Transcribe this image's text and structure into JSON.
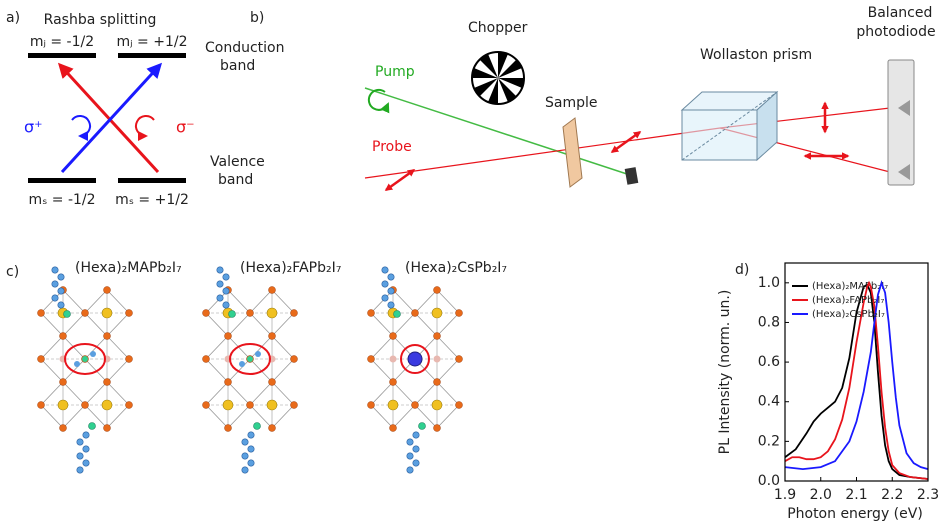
{
  "panel_a": {
    "label": "a)",
    "title": "Rashba splitting",
    "levels": {
      "top_left": "mⱼ = -1/2",
      "top_right": "mⱼ = +1/2",
      "bottom_left": "mₛ = -1/2",
      "bottom_right": "mₛ = +1/2"
    },
    "conduction": [
      "Conduction",
      "band"
    ],
    "valence": [
      "Valence",
      "band"
    ],
    "sigma_plus": "σ⁺",
    "sigma_minus": "σ⁻"
  },
  "panel_b": {
    "label": "b)",
    "pump": "Pump",
    "chopper": "Chopper",
    "sample": "Sample",
    "probe": "Probe",
    "prism": "Wollaston prism",
    "photodiode": [
      "Balanced",
      "photodiode"
    ]
  },
  "panel_c": {
    "label": "c)",
    "compounds": [
      "(Hexa)₂MAPb₂I₇",
      "(Hexa)₂FAPb₂I₇",
      "(Hexa)₂CsPb₂I₇"
    ]
  },
  "chart_data": {
    "type": "line",
    "panel_label": "d)",
    "xlabel": "Photon energy (eV)",
    "ylabel": "PL Intensity (norm. un.)",
    "xlim": [
      1.9,
      2.3
    ],
    "ylim": [
      0,
      1.1
    ],
    "xticks": [
      1.9,
      {
        "value": 2,
        "label": "2.0"
      },
      2.1,
      2.2,
      2.3
    ],
    "yticks": [
      {
        "value": 0,
        "label": "0.0"
      },
      0.2,
      0.4,
      0.6,
      0.8,
      {
        "value": 1,
        "label": "1.0"
      }
    ],
    "series": [
      {
        "name": "(Hexa)₂MAPb₂I₇",
        "color": "#000000",
        "x": [
          1.9,
          1.93,
          1.96,
          1.98,
          2.0,
          2.02,
          2.04,
          2.06,
          2.08,
          2.1,
          2.12,
          2.13,
          2.14,
          2.15,
          2.16,
          2.17,
          2.18,
          2.19,
          2.2,
          2.22,
          2.25,
          2.3
        ],
        "values": [
          0.12,
          0.16,
          0.24,
          0.3,
          0.34,
          0.37,
          0.4,
          0.47,
          0.62,
          0.85,
          0.98,
          0.99,
          0.95,
          0.8,
          0.55,
          0.33,
          0.18,
          0.1,
          0.06,
          0.03,
          0.02,
          0.01
        ]
      },
      {
        "name": "(Hexa)₂FAPb₂I₇",
        "color": "#e8141c",
        "x": [
          1.9,
          1.92,
          1.94,
          1.96,
          1.98,
          2.0,
          2.02,
          2.04,
          2.06,
          2.08,
          2.1,
          2.12,
          2.13,
          2.135,
          2.14,
          2.15,
          2.16,
          2.17,
          2.18,
          2.19,
          2.2,
          2.22,
          2.25,
          2.3
        ],
        "values": [
          0.1,
          0.12,
          0.12,
          0.11,
          0.11,
          0.12,
          0.15,
          0.21,
          0.31,
          0.47,
          0.7,
          0.9,
          0.98,
          1.0,
          0.98,
          0.88,
          0.68,
          0.45,
          0.27,
          0.15,
          0.08,
          0.04,
          0.02,
          0.01
        ]
      },
      {
        "name": "(Hexa)₂CsPb₂I₇",
        "color": "#1a1aff",
        "x": [
          1.9,
          1.95,
          2.0,
          2.04,
          2.08,
          2.1,
          2.12,
          2.14,
          2.15,
          2.16,
          2.17,
          2.18,
          2.19,
          2.2,
          2.21,
          2.22,
          2.24,
          2.26,
          2.28,
          2.3
        ],
        "values": [
          0.07,
          0.06,
          0.07,
          0.1,
          0.2,
          0.3,
          0.45,
          0.65,
          0.8,
          0.94,
          1.0,
          0.95,
          0.8,
          0.6,
          0.42,
          0.28,
          0.14,
          0.09,
          0.07,
          0.06
        ]
      }
    ]
  }
}
